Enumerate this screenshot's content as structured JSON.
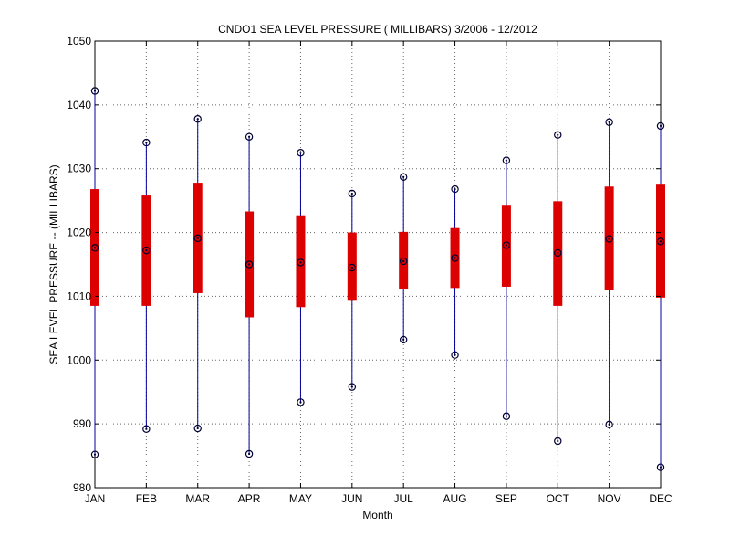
{
  "chart_data": {
    "type": "box",
    "title": "CNDO1  SEA LEVEL PRESSURE ( MILLIBARS) 3/2006 - 12/2012",
    "xlabel": "Month",
    "ylabel": "SEA LEVEL PRESSURE -- (MILLIBARS)",
    "ylim": [
      980,
      1050
    ],
    "yticks": [
      980,
      990,
      1000,
      1010,
      1020,
      1030,
      1040,
      1050
    ],
    "grid": true,
    "categories": [
      "JAN",
      "FEB",
      "MAR",
      "APR",
      "MAY",
      "JUN",
      "JUL",
      "AUG",
      "SEP",
      "OCT",
      "NOV",
      "DEC"
    ],
    "series": [
      {
        "min": [
          985.2,
          989.2,
          989.3,
          985.3,
          993.4,
          995.8,
          1003.2,
          1000.8,
          991.2,
          987.3,
          989.9,
          983.2
        ],
        "q1": [
          1008.5,
          1008.5,
          1010.5,
          1006.7,
          1008.3,
          1009.3,
          1011.2,
          1011.3,
          1011.5,
          1008.5,
          1011.0,
          1009.8
        ],
        "median": [
          1017.6,
          1017.2,
          1019.1,
          1015.0,
          1015.3,
          1014.5,
          1015.5,
          1016.0,
          1018.0,
          1016.8,
          1019.0,
          1018.6
        ],
        "q3": [
          1026.8,
          1025.8,
          1027.8,
          1023.3,
          1022.7,
          1020.0,
          1020.1,
          1020.7,
          1024.2,
          1024.9,
          1027.2,
          1027.5
        ],
        "max": [
          1042.2,
          1034.1,
          1037.8,
          1035.0,
          1032.5,
          1026.1,
          1028.7,
          1026.8,
          1031.3,
          1035.3,
          1037.3,
          1036.7
        ]
      }
    ],
    "colors": {
      "box": "#dd0000",
      "whisker": "#000099",
      "marker": "#000033",
      "grid": "#666666"
    }
  }
}
